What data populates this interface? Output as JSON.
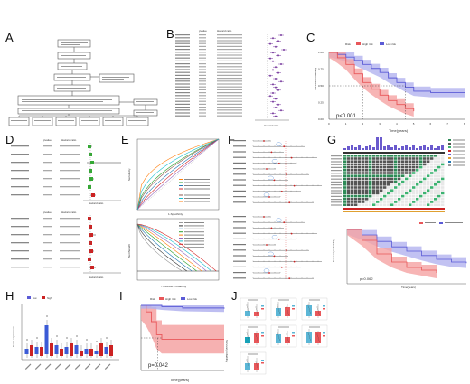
{
  "panels": {
    "A": "A",
    "B": "B",
    "C": "C",
    "D": "D",
    "E": "E",
    "F": "F",
    "G": "G",
    "H": "H",
    "I": "I",
    "J": "J"
  },
  "colors": {
    "high_risk": "#e8575a",
    "low_risk": "#5b5bd6",
    "high_risk_fill": "#f5a3a3",
    "low_risk_fill": "#b3b3ef",
    "forest_green": "#33aa33",
    "forest_red": "#cc2222",
    "purple": "#7b3fa0"
  },
  "panel_b": {
    "col_pvalue": "pvalue",
    "col_hr": "Hazard ratio",
    "xlabel": "Hazard ratio"
  },
  "panel_c": {
    "legend_title": "Risk",
    "legend_high": "High risk",
    "legend_low": "Low risk",
    "ylabel": "Survival probability",
    "xlabel": "Time(years)",
    "pvalue": "p<0.001",
    "xticks": [
      "0",
      "1",
      "2",
      "3",
      "4",
      "5",
      "6",
      "7",
      "8"
    ],
    "yticks": [
      "0.00",
      "0.25",
      "0.50",
      "0.75",
      "1.00"
    ]
  },
  "panel_d": {
    "col_pvalue": "pvalue",
    "col_hr": "Hazard ratio",
    "xlabel": "Hazard ratio"
  },
  "panel_e": {
    "roc_xlabel": "1-Specificity",
    "roc_ylabel": "Sensitivity",
    "dca_xlabel": "Threshold Probability",
    "dca_ylabel": "Net Benefit"
  },
  "panel_g": {
    "ylabel": "Survival probability",
    "xlabel": "Time(years)",
    "pvalue": "p=0.062"
  },
  "panel_h": {
    "legend_a": "low",
    "legend_b": "high",
    "ylabel": "Gene expression"
  },
  "panel_i": {
    "legend_title": "Risk",
    "legend_high": "High risk",
    "legend_low": "Low risk",
    "ylabel": "Survival probability",
    "xlabel": "Time(years)",
    "pvalue": "p=0.042"
  },
  "panel_j": {
    "legend_low": "Low",
    "legend_high": "High"
  },
  "chart_data": [
    {
      "type": "line",
      "panel": "C",
      "title": "",
      "xlabel": "Time(years)",
      "ylabel": "Survival probability",
      "xlim": [
        0,
        8
      ],
      "ylim": [
        0,
        1
      ],
      "series": [
        {
          "name": "High risk",
          "x": [
            0,
            0.5,
            1,
            1.5,
            2,
            2.5,
            3,
            3.5,
            4,
            4.5,
            5
          ],
          "values": [
            1,
            0.92,
            0.82,
            0.68,
            0.55,
            0.45,
            0.36,
            0.28,
            0.22,
            0.16,
            0.12
          ]
        },
        {
          "name": "Low risk",
          "x": [
            0,
            0.5,
            1,
            1.5,
            2,
            2.5,
            3,
            3.5,
            4,
            4.5,
            5,
            6,
            7,
            8
          ],
          "values": [
            1,
            0.97,
            0.93,
            0.88,
            0.82,
            0.76,
            0.7,
            0.62,
            0.55,
            0.48,
            0.42,
            0.4,
            0.4,
            0.4
          ]
        }
      ]
    },
    {
      "type": "line",
      "panel": "I",
      "title": "",
      "xlabel": "Time(years)",
      "ylabel": "Survival probability",
      "xlim": [
        0,
        8
      ],
      "ylim": [
        0,
        1
      ],
      "series": [
        {
          "name": "High risk",
          "x": [
            0,
            0.5,
            1,
            1.5,
            2,
            3,
            8
          ],
          "values": [
            1,
            0.9,
            0.75,
            0.55,
            0.48,
            0.48,
            0.48
          ]
        },
        {
          "name": "Low risk",
          "x": [
            0,
            1,
            2,
            4,
            8
          ],
          "values": [
            1,
            1,
            0.98,
            0.96,
            0.95
          ]
        }
      ]
    },
    {
      "type": "line",
      "panel": "G",
      "title": "",
      "xlabel": "Time(years)",
      "ylabel": "Survival probability",
      "ylim": [
        0,
        1
      ],
      "series": [
        {
          "name": "A",
          "x": [
            0,
            1,
            2,
            3,
            4,
            5,
            6
          ],
          "values": [
            1,
            0.8,
            0.55,
            0.4,
            0.3,
            0.25,
            0.2
          ]
        },
        {
          "name": "B",
          "x": [
            0,
            1,
            2,
            3,
            4,
            5,
            6,
            7,
            8
          ],
          "values": [
            1,
            0.9,
            0.78,
            0.68,
            0.6,
            0.52,
            0.45,
            0.4,
            0.38
          ]
        }
      ]
    }
  ]
}
